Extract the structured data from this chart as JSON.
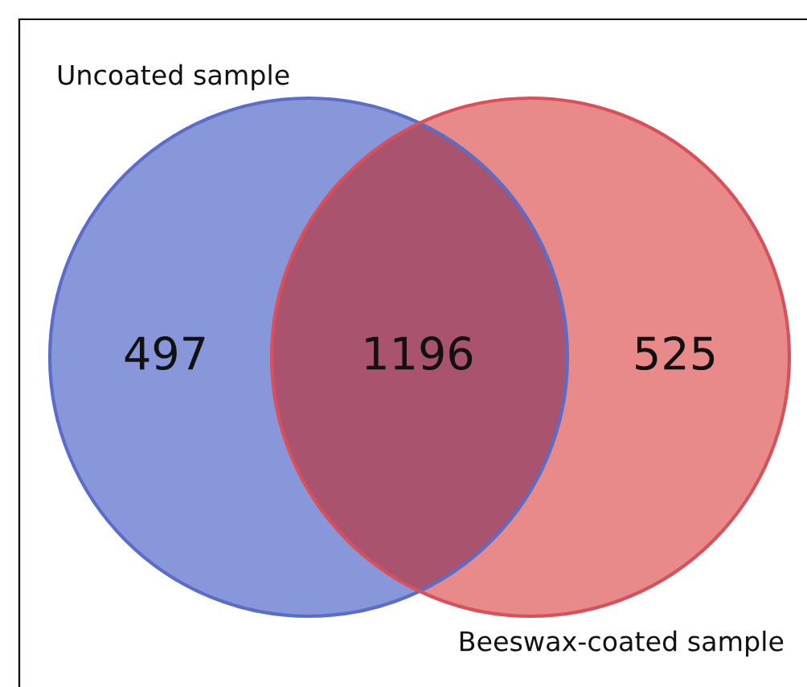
{
  "chart_data": {
    "type": "other",
    "categories": [
      null,
      null,
      null
    ],
    "values": [
      497,
      1196,
      525
    ],
    "colors": [
      "#8797d9",
      "#a9536f",
      "#e88a8a"
    ],
    "annotations": [
      "Uncoated sample",
      "Beeswax-coated sample"
    ],
    "data_labels": true
  }
}
